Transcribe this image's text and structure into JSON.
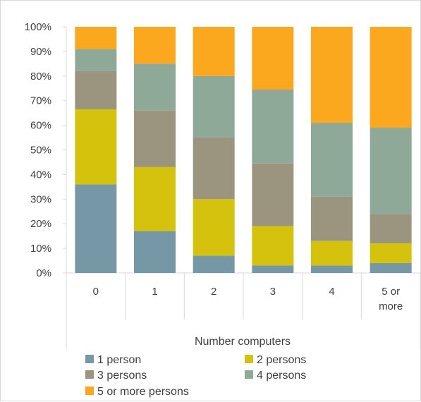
{
  "chart_data": {
    "type": "bar",
    "stacked": true,
    "percent": true,
    "categories": [
      "0",
      "1",
      "2",
      "3",
      "4",
      "5 or more"
    ],
    "series": [
      {
        "name": "1 person",
        "color": "#7698a6",
        "values": [
          36,
          17,
          7,
          3,
          3,
          4
        ]
      },
      {
        "name": "2 persons",
        "color": "#d4c20c",
        "values": [
          30.5,
          26,
          23,
          16,
          10,
          8
        ]
      },
      {
        "name": "3 persons",
        "color": "#9b9580",
        "values": [
          15.5,
          23,
          25,
          25.5,
          18,
          12
        ]
      },
      {
        "name": "4 persons",
        "color": "#8fa998",
        "values": [
          9,
          19,
          25,
          30,
          30,
          35
        ]
      },
      {
        "name": "5 or more persons",
        "color": "#fca81e",
        "values": [
          9,
          15,
          20,
          25.5,
          39,
          41
        ]
      }
    ],
    "yticks": [
      "0%",
      "10%",
      "20%",
      "30%",
      "40%",
      "50%",
      "60%",
      "70%",
      "80%",
      "90%",
      "100%"
    ],
    "ylim": [
      0,
      100
    ],
    "xlabel": "Number computers",
    "ylabel": "",
    "title": "",
    "grid": false,
    "legend_position": "bottom"
  }
}
